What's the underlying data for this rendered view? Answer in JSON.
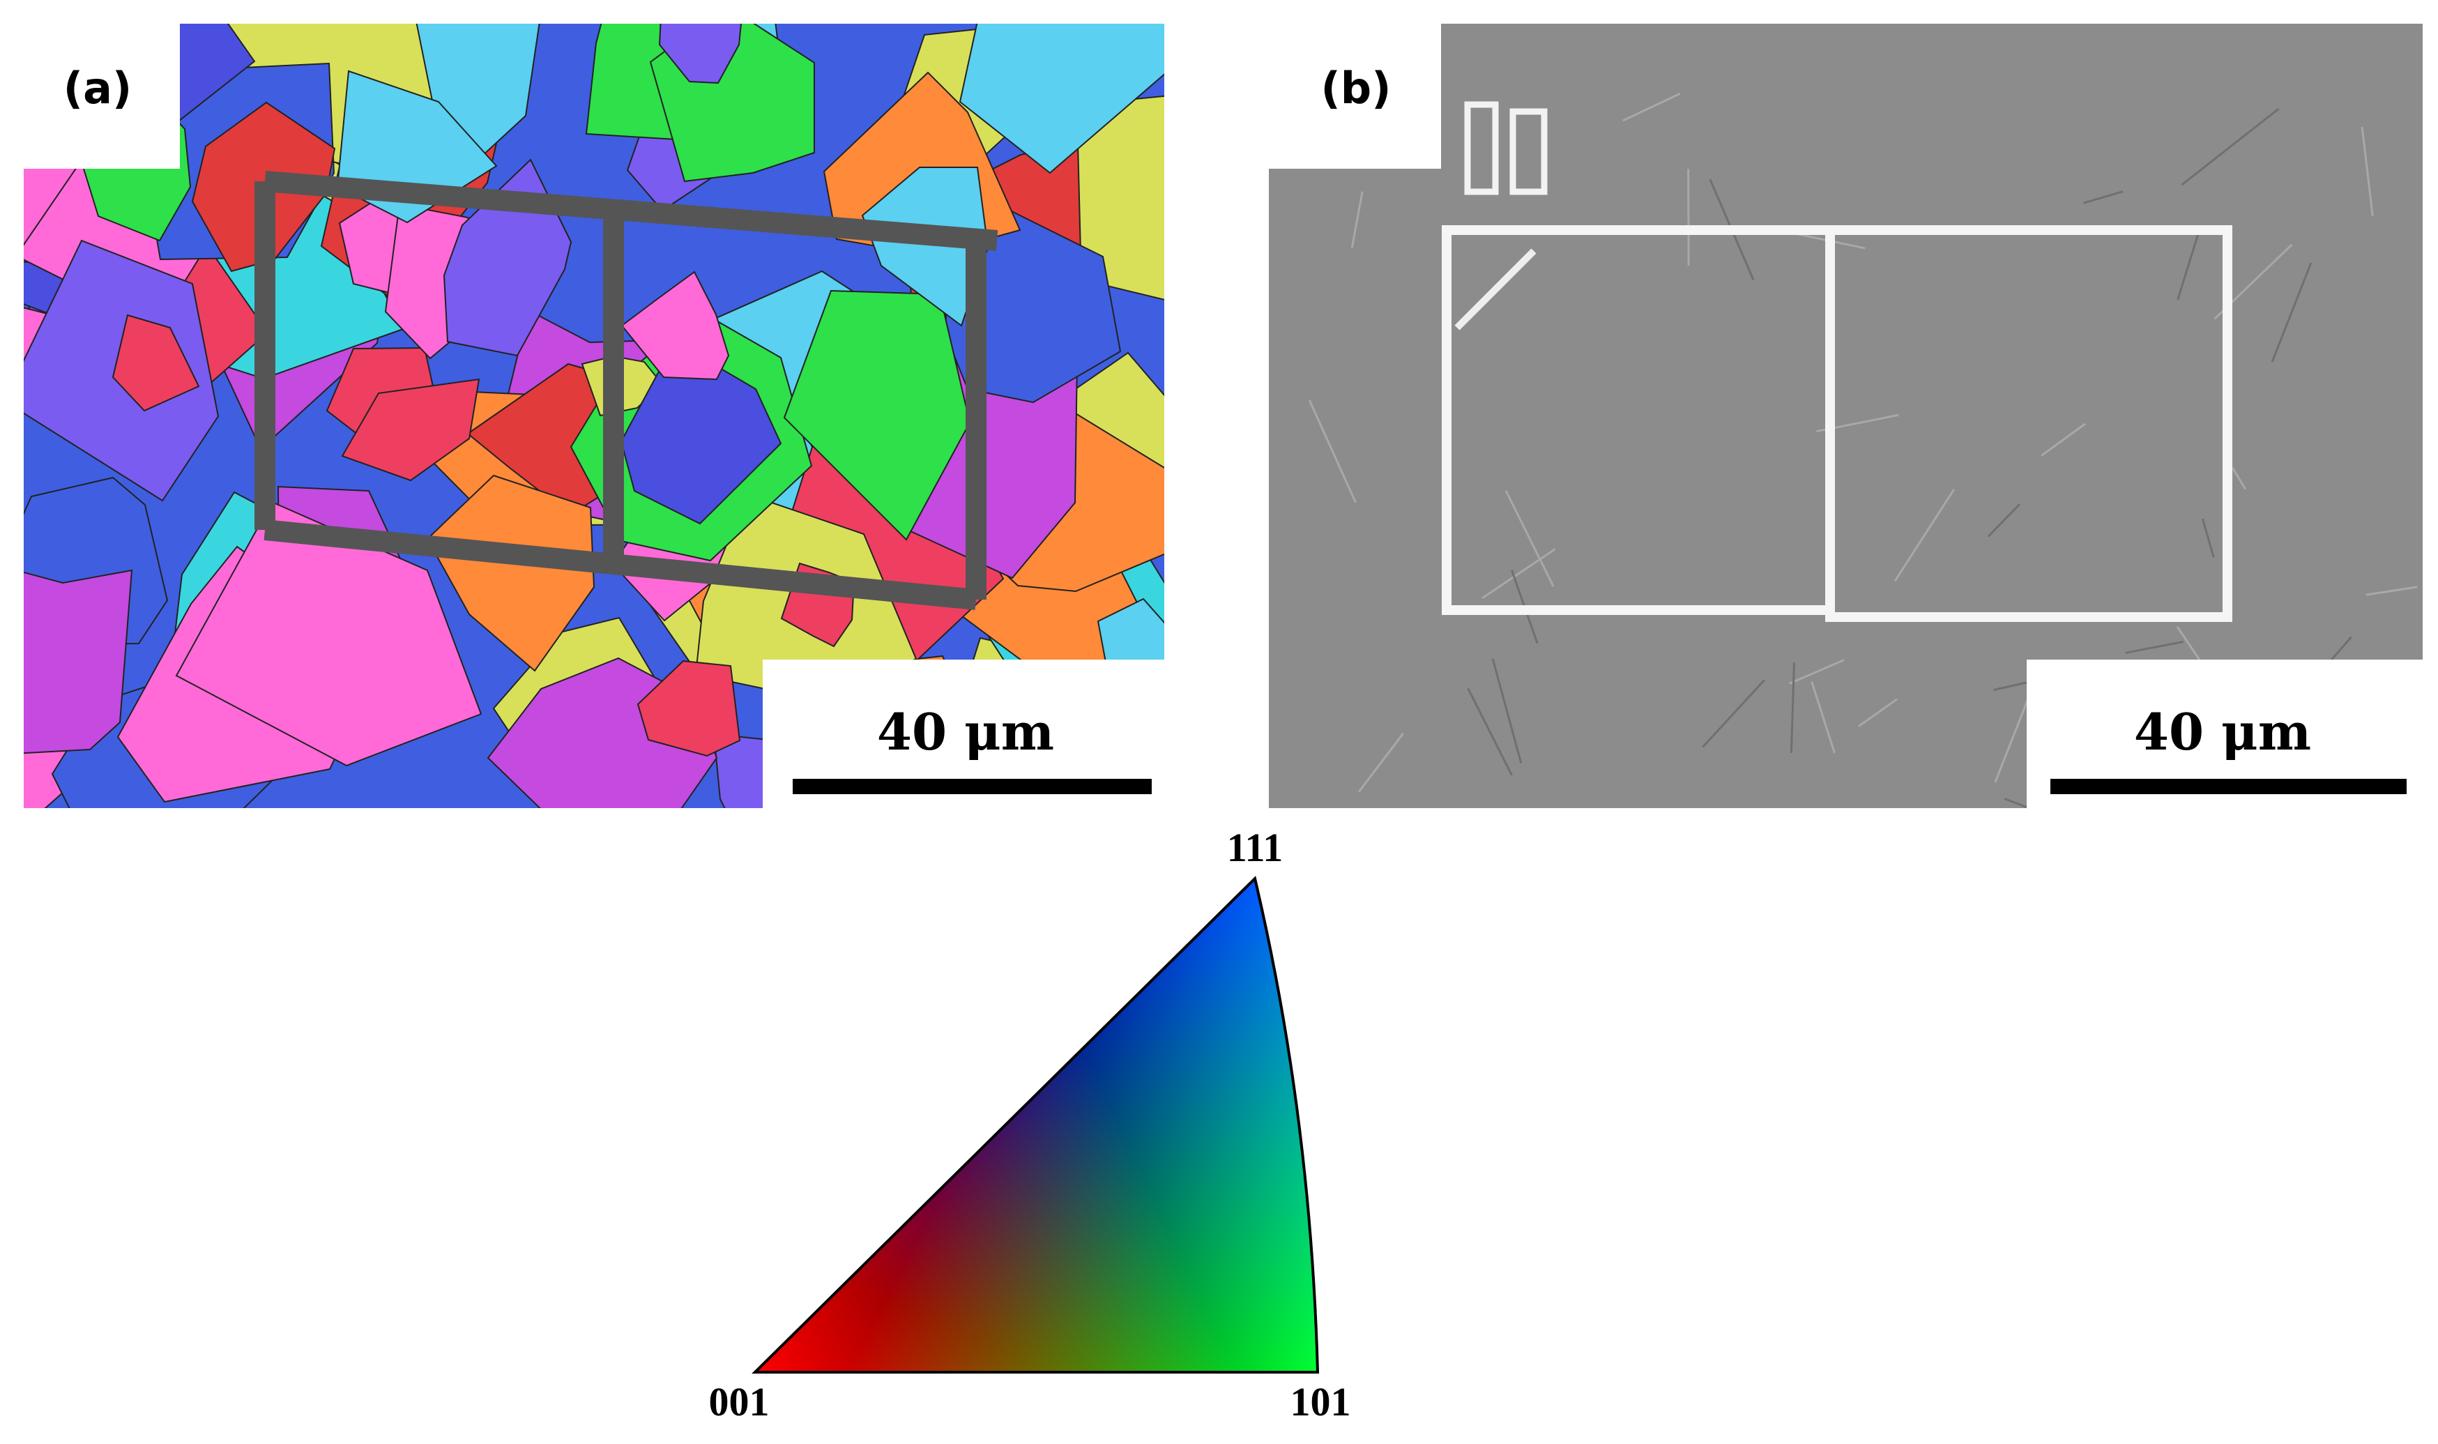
{
  "panels": [
    {
      "label": "(a)",
      "scale_bar": "40 μm"
    },
    {
      "label": "(b)",
      "scale_bar": "40 μm"
    }
  ],
  "ipf_key": {
    "top": "111",
    "left": "001",
    "right": "101"
  }
}
